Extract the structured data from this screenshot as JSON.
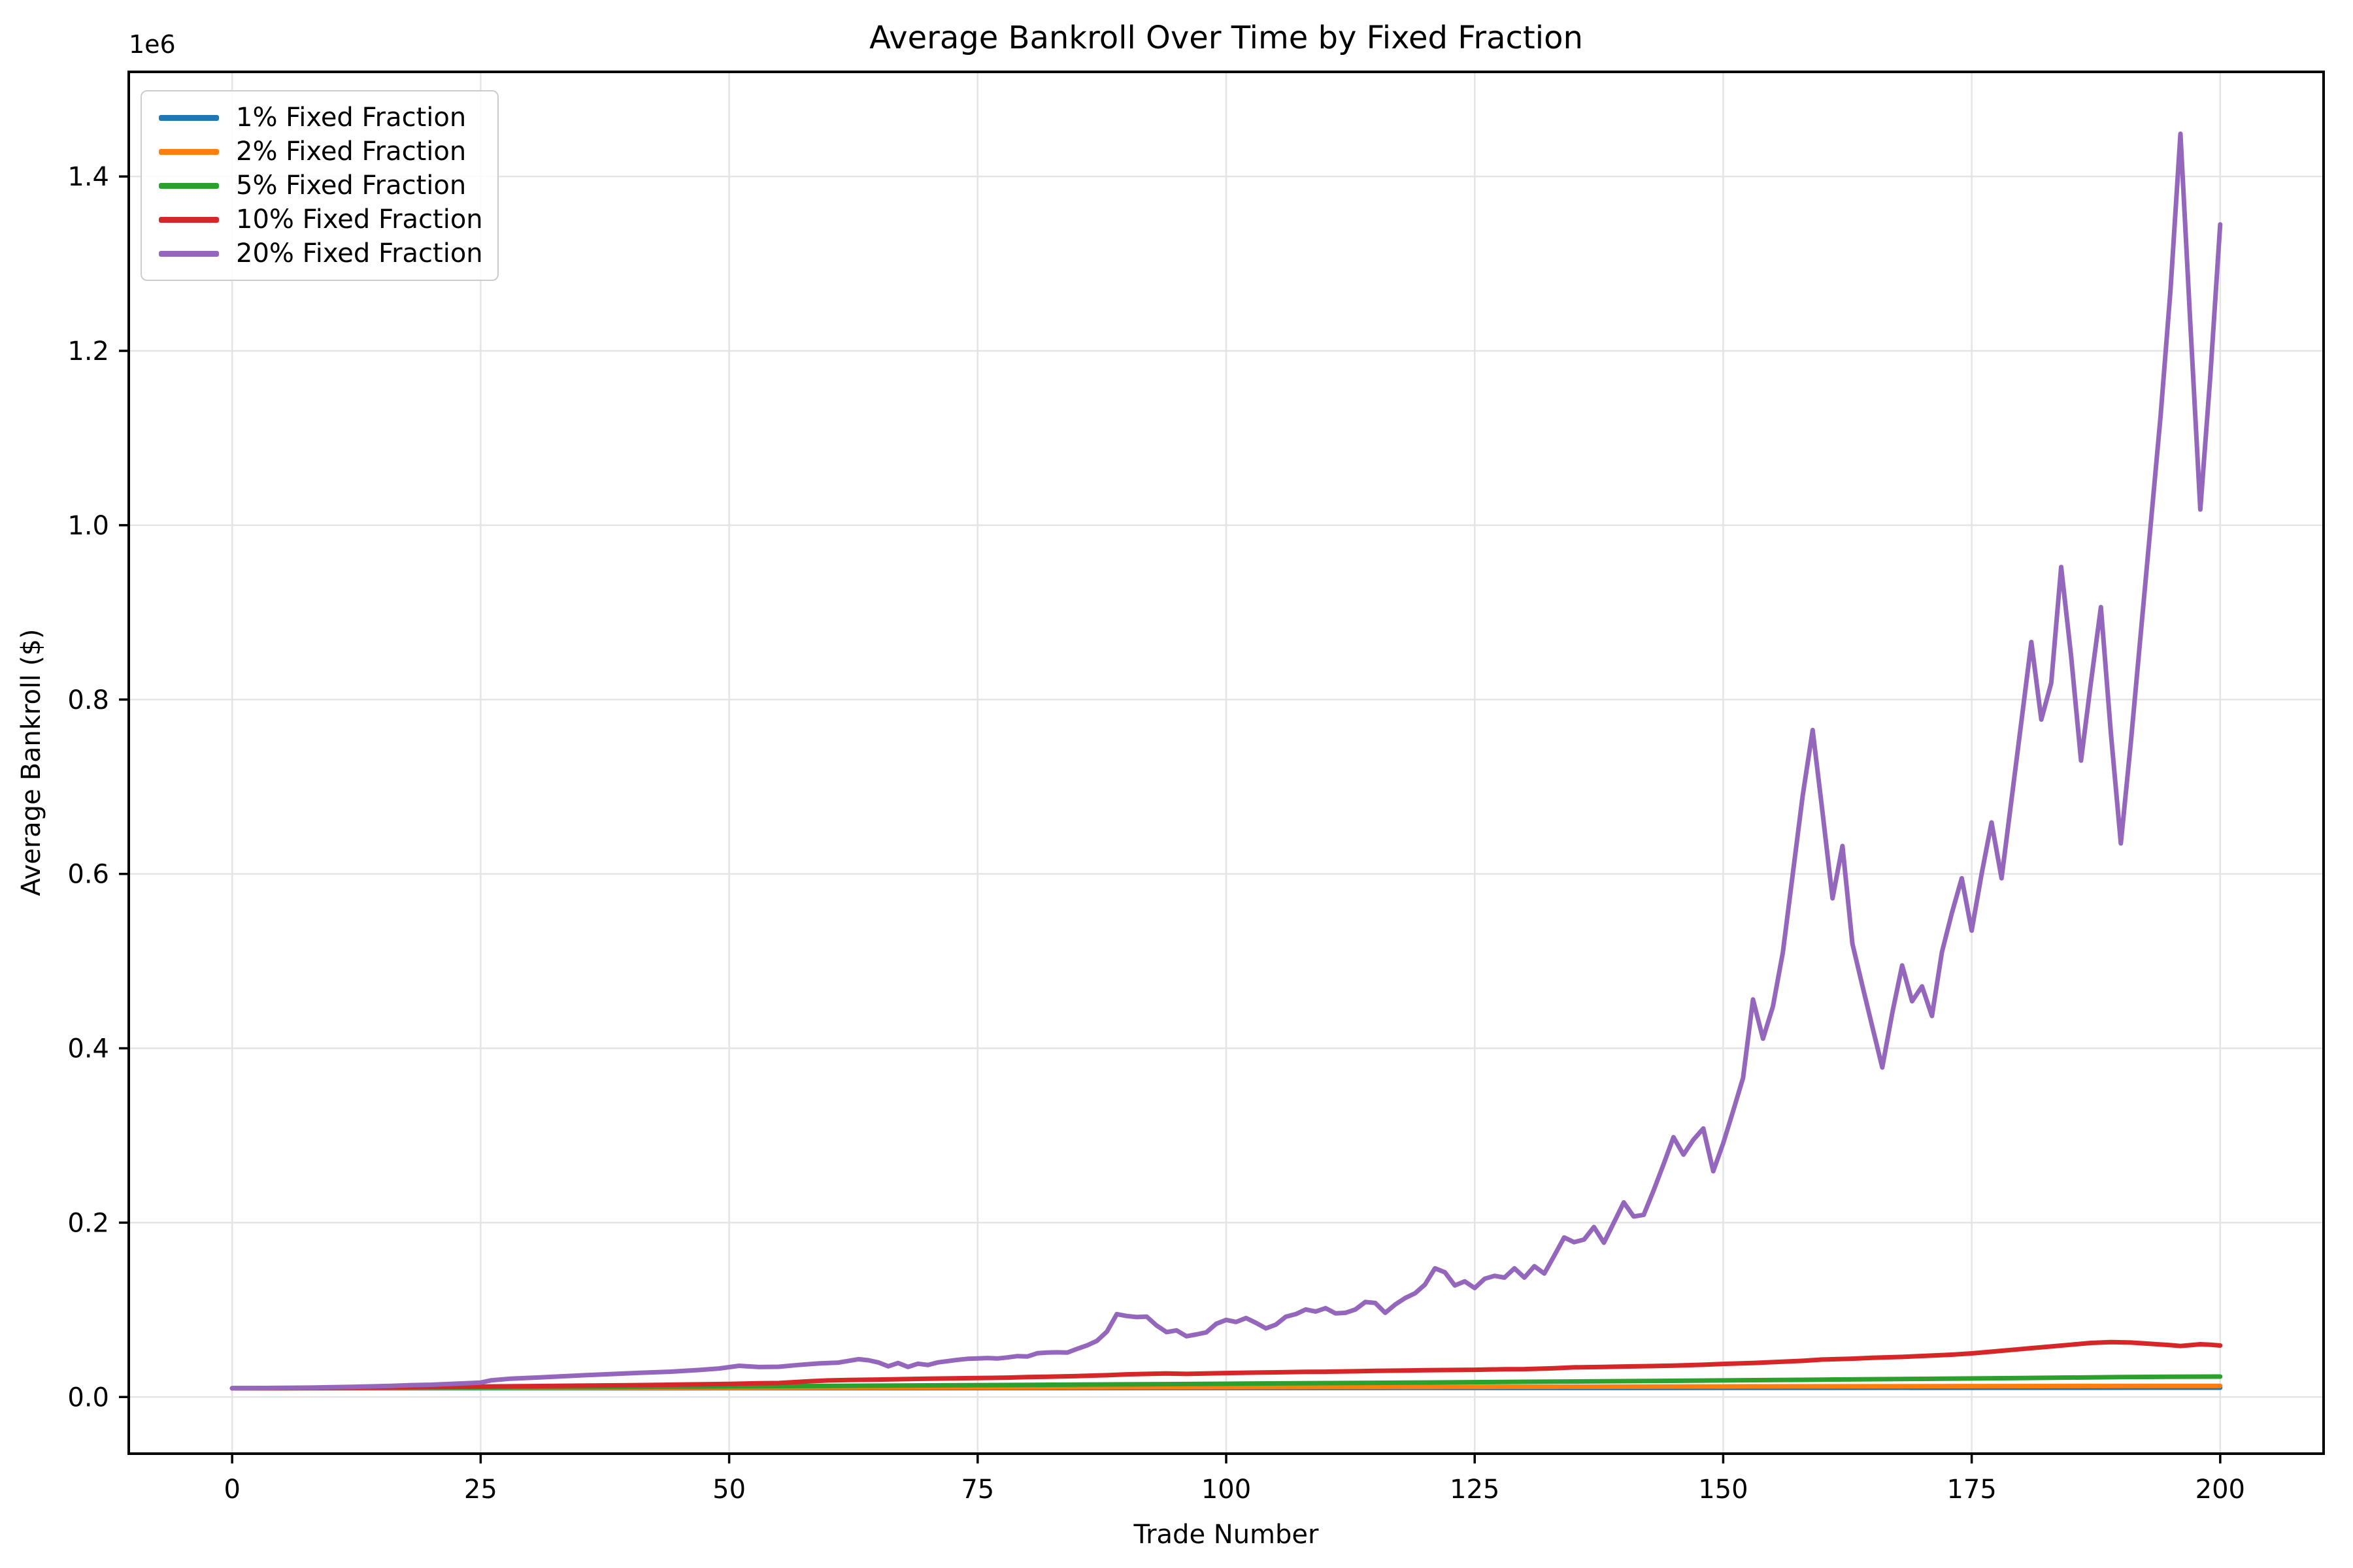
{
  "chart_data": {
    "type": "line",
    "title": "Average Bankroll Over Time by Fixed Fraction",
    "xlabel": "Trade Number",
    "ylabel": "Average Bankroll ($)",
    "y_offset_label": "1e6",
    "grid": true,
    "legend_position": "upper left",
    "background": "#ffffff",
    "grid_color": "#e4e4e4",
    "spine_color": "#000000",
    "xlim": [
      -10.4,
      210.4
    ],
    "ylim": [
      -65000,
      1520000
    ],
    "x_ticks": [
      {
        "value": 0,
        "label": "0"
      },
      {
        "value": 25,
        "label": "25"
      },
      {
        "value": 50,
        "label": "50"
      },
      {
        "value": 75,
        "label": "75"
      },
      {
        "value": 100,
        "label": "100"
      },
      {
        "value": 125,
        "label": "125"
      },
      {
        "value": 150,
        "label": "150"
      },
      {
        "value": 175,
        "label": "175"
      },
      {
        "value": 200,
        "label": "200"
      }
    ],
    "y_ticks": [
      {
        "value": 0,
        "label": "0.0"
      },
      {
        "value": 200000,
        "label": "0.2"
      },
      {
        "value": 400000,
        "label": "0.4"
      },
      {
        "value": 600000,
        "label": "0.6"
      },
      {
        "value": 800000,
        "label": "0.8"
      },
      {
        "value": 1000000,
        "label": "1.0"
      },
      {
        "value": 1200000,
        "label": "1.2"
      },
      {
        "value": 1400000,
        "label": "1.4"
      }
    ],
    "series": [
      {
        "name": "1% Fixed Fraction",
        "slug": "1pct",
        "color": "#1f77b4",
        "points": [
          [
            0,
            10000
          ],
          [
            50,
            10100
          ],
          [
            100,
            10300
          ],
          [
            150,
            10500
          ],
          [
            200,
            10700
          ]
        ]
      },
      {
        "name": "2% Fixed Fraction",
        "slug": "2pct",
        "color": "#ff7f0e",
        "points": [
          [
            0,
            10000
          ],
          [
            25,
            10300
          ],
          [
            50,
            10600
          ],
          [
            75,
            11000
          ],
          [
            100,
            11300
          ],
          [
            125,
            11700
          ],
          [
            150,
            12100
          ],
          [
            175,
            12500
          ],
          [
            200,
            12800
          ]
        ]
      },
      {
        "name": "5% Fixed Fraction",
        "slug": "5pct",
        "color": "#2ca02c",
        "points": [
          [
            0,
            10000
          ],
          [
            10,
            10400
          ],
          [
            20,
            10800
          ],
          [
            30,
            11200
          ],
          [
            40,
            11700
          ],
          [
            50,
            12200
          ],
          [
            60,
            12700
          ],
          [
            70,
            13300
          ],
          [
            75,
            13600
          ],
          [
            80,
            13900
          ],
          [
            90,
            14500
          ],
          [
            100,
            15200
          ],
          [
            110,
            15900
          ],
          [
            120,
            16600
          ],
          [
            130,
            17400
          ],
          [
            140,
            18200
          ],
          [
            150,
            19000
          ],
          [
            160,
            19900
          ],
          [
            170,
            20800
          ],
          [
            180,
            21800
          ],
          [
            190,
            22800
          ],
          [
            195,
            23200
          ],
          [
            200,
            23400
          ]
        ]
      },
      {
        "name": "10% Fixed Fraction",
        "slug": "10pct",
        "color": "#d62728",
        "points": [
          [
            0,
            10000
          ],
          [
            5,
            10200
          ],
          [
            10,
            10500
          ],
          [
            15,
            11000
          ],
          [
            20,
            11500
          ],
          [
            25,
            12000
          ],
          [
            30,
            12500
          ],
          [
            35,
            13000
          ],
          [
            40,
            13500
          ],
          [
            45,
            14200
          ],
          [
            50,
            15000
          ],
          [
            53,
            15800
          ],
          [
            55,
            16000
          ],
          [
            58,
            18000
          ],
          [
            60,
            19000
          ],
          [
            62,
            19500
          ],
          [
            65,
            20000
          ],
          [
            70,
            21000
          ],
          [
            75,
            21700
          ],
          [
            78,
            22200
          ],
          [
            80,
            22800
          ],
          [
            82,
            23200
          ],
          [
            85,
            24000
          ],
          [
            88,
            25000
          ],
          [
            90,
            26000
          ],
          [
            92,
            26500
          ],
          [
            94,
            27000
          ],
          [
            96,
            26500
          ],
          [
            98,
            27000
          ],
          [
            100,
            27500
          ],
          [
            103,
            28000
          ],
          [
            105,
            28300
          ],
          [
            108,
            28800
          ],
          [
            110,
            29000
          ],
          [
            113,
            29500
          ],
          [
            115,
            30000
          ],
          [
            118,
            30300
          ],
          [
            120,
            30700
          ],
          [
            123,
            31000
          ],
          [
            125,
            31200
          ],
          [
            128,
            31800
          ],
          [
            130,
            32000
          ],
          [
            133,
            33000
          ],
          [
            135,
            34000
          ],
          [
            138,
            34500
          ],
          [
            140,
            35000
          ],
          [
            143,
            35500
          ],
          [
            145,
            36000
          ],
          [
            148,
            37000
          ],
          [
            150,
            38000
          ],
          [
            153,
            39000
          ],
          [
            155,
            40000
          ],
          [
            158,
            41500
          ],
          [
            160,
            43000
          ],
          [
            163,
            44000
          ],
          [
            165,
            45000
          ],
          [
            168,
            46000
          ],
          [
            170,
            47000
          ],
          [
            173,
            48500
          ],
          [
            175,
            50000
          ],
          [
            177,
            52000
          ],
          [
            179,
            54000
          ],
          [
            181,
            56000
          ],
          [
            183,
            58000
          ],
          [
            185,
            60000
          ],
          [
            187,
            62000
          ],
          [
            189,
            63000
          ],
          [
            191,
            62500
          ],
          [
            193,
            61000
          ],
          [
            195,
            59500
          ],
          [
            196,
            58500
          ],
          [
            197,
            59500
          ],
          [
            198,
            60500
          ],
          [
            199,
            60000
          ],
          [
            200,
            59000
          ]
        ]
      },
      {
        "name": "20% Fixed Fraction",
        "slug": "20pct",
        "color": "#9467bd",
        "points": [
          [
            0,
            10000
          ],
          [
            2,
            10200
          ],
          [
            4,
            10400
          ],
          [
            6,
            10600
          ],
          [
            8,
            10800
          ],
          [
            10,
            11200
          ],
          [
            12,
            11600
          ],
          [
            14,
            12200
          ],
          [
            16,
            12800
          ],
          [
            18,
            13600
          ],
          [
            20,
            14100
          ],
          [
            22,
            15000
          ],
          [
            25,
            16500
          ],
          [
            26,
            19000
          ],
          [
            28,
            21000
          ],
          [
            31,
            22500
          ],
          [
            35,
            24800
          ],
          [
            38,
            26200
          ],
          [
            41,
            27700
          ],
          [
            44,
            29000
          ],
          [
            47,
            31000
          ],
          [
            49,
            32700
          ],
          [
            51,
            35800
          ],
          [
            53,
            34400
          ],
          [
            55,
            34700
          ],
          [
            57,
            36800
          ],
          [
            59,
            38500
          ],
          [
            61,
            39500
          ],
          [
            63,
            43400
          ],
          [
            64,
            42200
          ],
          [
            65,
            39700
          ],
          [
            66,
            35200
          ],
          [
            67,
            39000
          ],
          [
            68,
            34500
          ],
          [
            69,
            38200
          ],
          [
            70,
            36700
          ],
          [
            71,
            39700
          ],
          [
            72,
            41200
          ],
          [
            73,
            42700
          ],
          [
            74,
            43800
          ],
          [
            75,
            44200
          ],
          [
            76,
            44700
          ],
          [
            77,
            44200
          ],
          [
            78,
            45400
          ],
          [
            79,
            46900
          ],
          [
            80,
            46400
          ],
          [
            81,
            50200
          ],
          [
            82,
            50900
          ],
          [
            83,
            51200
          ],
          [
            84,
            50900
          ],
          [
            85,
            55200
          ],
          [
            86,
            59200
          ],
          [
            87,
            64400
          ],
          [
            88,
            75000
          ],
          [
            89,
            95100
          ],
          [
            90,
            92900
          ],
          [
            91,
            91700
          ],
          [
            92,
            92200
          ],
          [
            93,
            82000
          ],
          [
            94,
            74500
          ],
          [
            95,
            76400
          ],
          [
            96,
            69700
          ],
          [
            97,
            71800
          ],
          [
            98,
            74200
          ],
          [
            99,
            84000
          ],
          [
            100,
            88400
          ],
          [
            101,
            86100
          ],
          [
            102,
            90600
          ],
          [
            103,
            85000
          ],
          [
            104,
            78700
          ],
          [
            105,
            83000
          ],
          [
            106,
            92100
          ],
          [
            107,
            95100
          ],
          [
            108,
            100400
          ],
          [
            109,
            98100
          ],
          [
            110,
            101900
          ],
          [
            111,
            95900
          ],
          [
            112,
            96600
          ],
          [
            113,
            100400
          ],
          [
            114,
            109000
          ],
          [
            115,
            107900
          ],
          [
            116,
            96600
          ],
          [
            117,
            106000
          ],
          [
            118,
            113500
          ],
          [
            119,
            119000
          ],
          [
            120,
            129000
          ],
          [
            121,
            147600
          ],
          [
            122,
            143000
          ],
          [
            123,
            128000
          ],
          [
            124,
            132600
          ],
          [
            125,
            125000
          ],
          [
            126,
            135600
          ],
          [
            127,
            139000
          ],
          [
            128,
            137000
          ],
          [
            129,
            147600
          ],
          [
            130,
            137000
          ],
          [
            131,
            150000
          ],
          [
            132,
            141600
          ],
          [
            133,
            162000
          ],
          [
            134,
            183000
          ],
          [
            135,
            177600
          ],
          [
            136,
            180600
          ],
          [
            137,
            195000
          ],
          [
            138,
            177000
          ],
          [
            139,
            200000
          ],
          [
            140,
            223200
          ],
          [
            141,
            207000
          ],
          [
            142,
            209000
          ],
          [
            143,
            237000
          ],
          [
            144,
            267000
          ],
          [
            145,
            298000
          ],
          [
            146,
            278000
          ],
          [
            147,
            295000
          ],
          [
            148,
            308000
          ],
          [
            149,
            259000
          ],
          [
            150,
            291000
          ],
          [
            151,
            328000
          ],
          [
            152,
            366000
          ],
          [
            153,
            456000
          ],
          [
            154,
            411000
          ],
          [
            155,
            448000
          ],
          [
            156,
            510000
          ],
          [
            157,
            600000
          ],
          [
            158,
            690000
          ],
          [
            159,
            765000
          ],
          [
            160,
            670000
          ],
          [
            161,
            572000
          ],
          [
            162,
            632000
          ],
          [
            163,
            520000
          ],
          [
            164,
            472000
          ],
          [
            165,
            425000
          ],
          [
            166,
            378000
          ],
          [
            167,
            440000
          ],
          [
            168,
            495000
          ],
          [
            169,
            454000
          ],
          [
            170,
            471000
          ],
          [
            171,
            437000
          ],
          [
            172,
            510000
          ],
          [
            173,
            555000
          ],
          [
            174,
            595000
          ],
          [
            175,
            535000
          ],
          [
            176,
            600000
          ],
          [
            177,
            659000
          ],
          [
            178,
            595000
          ],
          [
            179,
            685000
          ],
          [
            180,
            775000
          ],
          [
            181,
            866000
          ],
          [
            182,
            777000
          ],
          [
            183,
            819000
          ],
          [
            184,
            952000
          ],
          [
            185,
            850000
          ],
          [
            186,
            730000
          ],
          [
            187,
            820000
          ],
          [
            188,
            906000
          ],
          [
            189,
            762000
          ],
          [
            190,
            635000
          ],
          [
            191,
            750000
          ],
          [
            192,
            875000
          ],
          [
            193,
            1000000
          ],
          [
            194,
            1125000
          ],
          [
            195,
            1270000
          ],
          [
            196,
            1449000
          ],
          [
            197,
            1230000
          ],
          [
            198,
            1018000
          ],
          [
            199,
            1170000
          ],
          [
            200,
            1345000
          ]
        ]
      }
    ]
  }
}
